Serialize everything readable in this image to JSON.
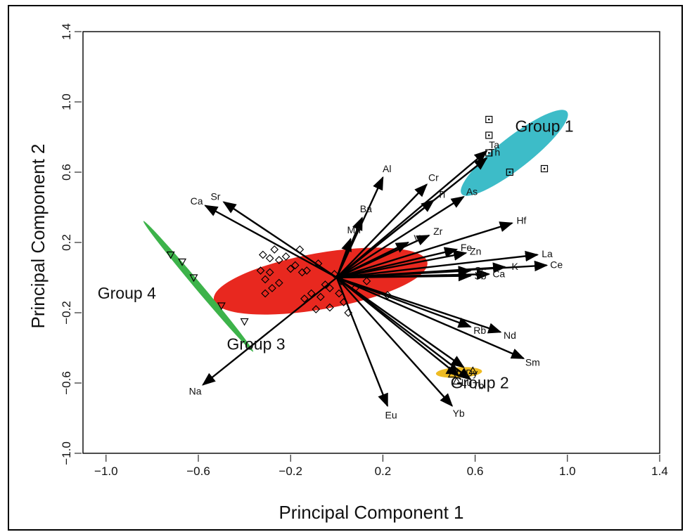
{
  "chart_data": {
    "type": "scatter",
    "xlabel": "Principal Component 1",
    "ylabel": "Principal Component 2",
    "xlim": [
      -1.1,
      1.4
    ],
    "ylim": [
      -1.0,
      1.4
    ],
    "x_ticks": [
      -1.0,
      -0.6,
      -0.2,
      0.2,
      0.6,
      1.0,
      1.4
    ],
    "x_tick_labels": [
      "−1.0",
      "−0.6",
      "−0.2",
      "0.2",
      "0.6",
      "1.0",
      "1.4"
    ],
    "y_ticks": [
      -1.0,
      -0.6,
      -0.2,
      0.2,
      0.6,
      1.0,
      1.4
    ],
    "y_tick_labels": [
      "−1.0",
      "−0.6",
      "−0.2",
      "0.2",
      "0.6",
      "1.0",
      "1.4"
    ],
    "grid": false,
    "groups": [
      {
        "name": "Group 1",
        "color": "#3dbcc8",
        "marker": "square",
        "ellipse": {
          "cx": 0.77,
          "cy": 0.71,
          "rx": 0.29,
          "ry": 0.09,
          "angle": -38
        },
        "label_pos": [
          0.9,
          0.83
        ],
        "points": [
          [
            0.66,
            0.9
          ],
          [
            0.66,
            0.81
          ],
          [
            0.66,
            0.71
          ],
          [
            0.75,
            0.6
          ],
          [
            0.9,
            0.62
          ]
        ]
      },
      {
        "name": "Group 2",
        "color": "#eebb22",
        "marker": "triangle-up",
        "ellipse": {
          "cx": 0.53,
          "cy": -0.54,
          "rx": 0.1,
          "ry": 0.03,
          "angle": -3
        },
        "label_pos": [
          0.62,
          -0.63
        ],
        "points": [
          [
            0.49,
            -0.53
          ],
          [
            0.51,
            -0.52
          ],
          [
            0.59,
            -0.53
          ],
          [
            0.52,
            -0.59
          ],
          [
            0.5,
            -0.55
          ]
        ]
      },
      {
        "name": "Group 3",
        "color": "#e8281f",
        "marker": "diamond",
        "ellipse": {
          "cx": -0.07,
          "cy": -0.02,
          "rx": 0.47,
          "ry": 0.16,
          "angle": -10
        },
        "label_pos": [
          -0.35,
          -0.41
        ],
        "points": [
          [
            -0.33,
            0.04
          ],
          [
            -0.29,
            0.03
          ],
          [
            -0.31,
            -0.01
          ],
          [
            -0.31,
            -0.09
          ],
          [
            -0.27,
            0.16
          ],
          [
            -0.25,
            0.1
          ],
          [
            -0.22,
            0.12
          ],
          [
            -0.2,
            0.05
          ],
          [
            -0.18,
            0.07
          ],
          [
            -0.16,
            0.16
          ],
          [
            -0.15,
            0.03
          ],
          [
            -0.13,
            0.04
          ],
          [
            -0.14,
            -0.12
          ],
          [
            -0.11,
            -0.09
          ],
          [
            -0.09,
            -0.18
          ],
          [
            -0.07,
            -0.11
          ],
          [
            -0.08,
            0.08
          ],
          [
            -0.05,
            -0.04
          ],
          [
            -0.03,
            -0.17
          ],
          [
            -0.01,
            0.02
          ],
          [
            0.01,
            -0.09
          ],
          [
            0.03,
            -0.14
          ],
          [
            0.05,
            -0.2
          ],
          [
            0.13,
            -0.02
          ],
          [
            0.22,
            -0.1
          ],
          [
            0.08,
            -0.06
          ],
          [
            -0.25,
            -0.03
          ],
          [
            -0.29,
            0.11
          ],
          [
            -0.32,
            0.13
          ],
          [
            -0.03,
            -0.06
          ],
          [
            0.02,
            -0.02
          ],
          [
            -0.28,
            -0.06
          ]
        ]
      },
      {
        "name": "Group 4",
        "color": "#3db34a",
        "marker": "triangle-down",
        "ellipse": {
          "cx": -0.6,
          "cy": -0.05,
          "rx": 0.37,
          "ry": 0.02,
          "angle": 50
        },
        "label_pos": [
          -0.91,
          -0.12
        ],
        "points": [
          [
            -0.72,
            0.13
          ],
          [
            -0.67,
            0.09
          ],
          [
            -0.62,
            0.0
          ],
          [
            -0.5,
            -0.16
          ],
          [
            -0.4,
            -0.25
          ]
        ]
      }
    ],
    "loadings": [
      {
        "label": "Ta",
        "x": 0.65,
        "y": 0.72
      },
      {
        "label": "Th",
        "x": 0.65,
        "y": 0.68
      },
      {
        "label": "Cr",
        "x": 0.39,
        "y": 0.53
      },
      {
        "label": "As",
        "x": 0.55,
        "y": 0.46
      },
      {
        "label": "Ti",
        "x": 0.42,
        "y": 0.44
      },
      {
        "label": "Al",
        "x": 0.2,
        "y": 0.57
      },
      {
        "label": "Ba",
        "x": 0.11,
        "y": 0.34
      },
      {
        "label": "Mn",
        "x": 0.06,
        "y": 0.22
      },
      {
        "label": "Hf",
        "x": 0.76,
        "y": 0.31
      },
      {
        "label": "Zr",
        "x": 0.4,
        "y": 0.24
      },
      {
        "label": "V",
        "x": 0.31,
        "y": 0.2
      },
      {
        "label": "Fe",
        "x": 0.52,
        "y": 0.16
      },
      {
        "label": "Zn",
        "x": 0.56,
        "y": 0.14
      },
      {
        "label": "La",
        "x": 0.87,
        "y": 0.13
      },
      {
        "label": "Ce",
        "x": 0.91,
        "y": 0.07
      },
      {
        "label": "K",
        "x": 0.73,
        "y": 0.06
      },
      {
        "label": "Sc",
        "x": 0.58,
        "y": 0.04
      },
      {
        "label": "Ca",
        "x": 0.66,
        "y": 0.02
      },
      {
        "label": "Sb",
        "x": 0.58,
        "y": 0.01
      },
      {
        "label": "Nd",
        "x": 0.71,
        "y": -0.31
      },
      {
        "label": "Rb",
        "x": 0.58,
        "y": -0.28
      },
      {
        "label": "Sm",
        "x": 0.81,
        "y": -0.46
      },
      {
        "label": "Dy",
        "x": 0.55,
        "y": -0.51
      },
      {
        "label": "Lu",
        "x": 0.53,
        "y": -0.56
      },
      {
        "label": "Tb",
        "x": 0.58,
        "y": -0.58
      },
      {
        "label": "Yb",
        "x": 0.5,
        "y": -0.73
      },
      {
        "label": "Eu",
        "x": 0.22,
        "y": -0.73
      },
      {
        "label": "Na",
        "x": -0.58,
        "y": -0.61
      },
      {
        "label": "Ca",
        "x": -0.57,
        "y": 0.41
      },
      {
        "label": "Sr",
        "x": -0.49,
        "y": 0.43
      }
    ]
  }
}
